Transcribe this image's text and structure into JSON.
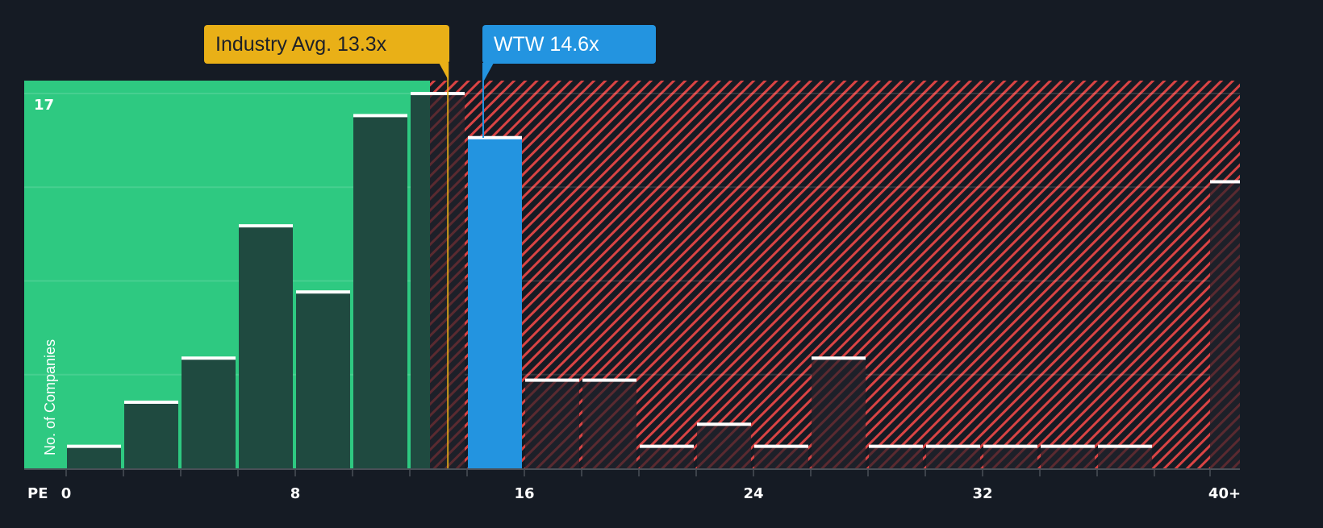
{
  "colors": {
    "background": "#151b24",
    "fair_zone": "#2ec981",
    "bar_in_fair": "#1f4a40",
    "bar_overvalued": "#1d2029",
    "hatch": "#d94444",
    "company": "#2394e0",
    "industry": "#e9b017",
    "bar_cap": "#ffffff"
  },
  "callouts": {
    "industry": {
      "label": "Industry Avg. 13.3x",
      "value": 13.3
    },
    "company": {
      "label": "WTW 14.6x",
      "value": 14.6
    }
  },
  "axis": {
    "x_label": "PE",
    "x_ticks": [
      "0",
      "8",
      "16",
      "24",
      "32",
      "40+"
    ],
    "y_label": "No. of Companies",
    "y_max_label": "17"
  },
  "chart_data": {
    "type": "bar",
    "title": "",
    "xlabel": "PE",
    "ylabel": "No. of Companies",
    "categories": [
      "0-2",
      "2-4",
      "4-6",
      "6-8",
      "8-10",
      "10-12",
      "12-14",
      "14-16",
      "16-18",
      "18-20",
      "20-22",
      "22-24",
      "24-26",
      "26-28",
      "28-30",
      "30-32",
      "32-34",
      "34-36",
      "36-38",
      "38-40",
      "40+"
    ],
    "values": [
      1,
      3,
      5,
      11,
      8,
      16,
      17,
      15,
      4,
      4,
      1,
      2,
      1,
      5,
      1,
      1,
      1,
      1,
      1,
      0,
      13
    ],
    "highlight_bin": "14-16",
    "ylim": [
      0,
      17.6
    ],
    "x_tick_labels": [
      "0",
      "8",
      "16",
      "24",
      "32",
      "40+"
    ],
    "annotations": [
      {
        "text": "Industry Avg. 13.3x",
        "x": 13.3
      },
      {
        "text": "WTW 14.6x",
        "x": 14.6
      }
    ],
    "grid": true
  }
}
